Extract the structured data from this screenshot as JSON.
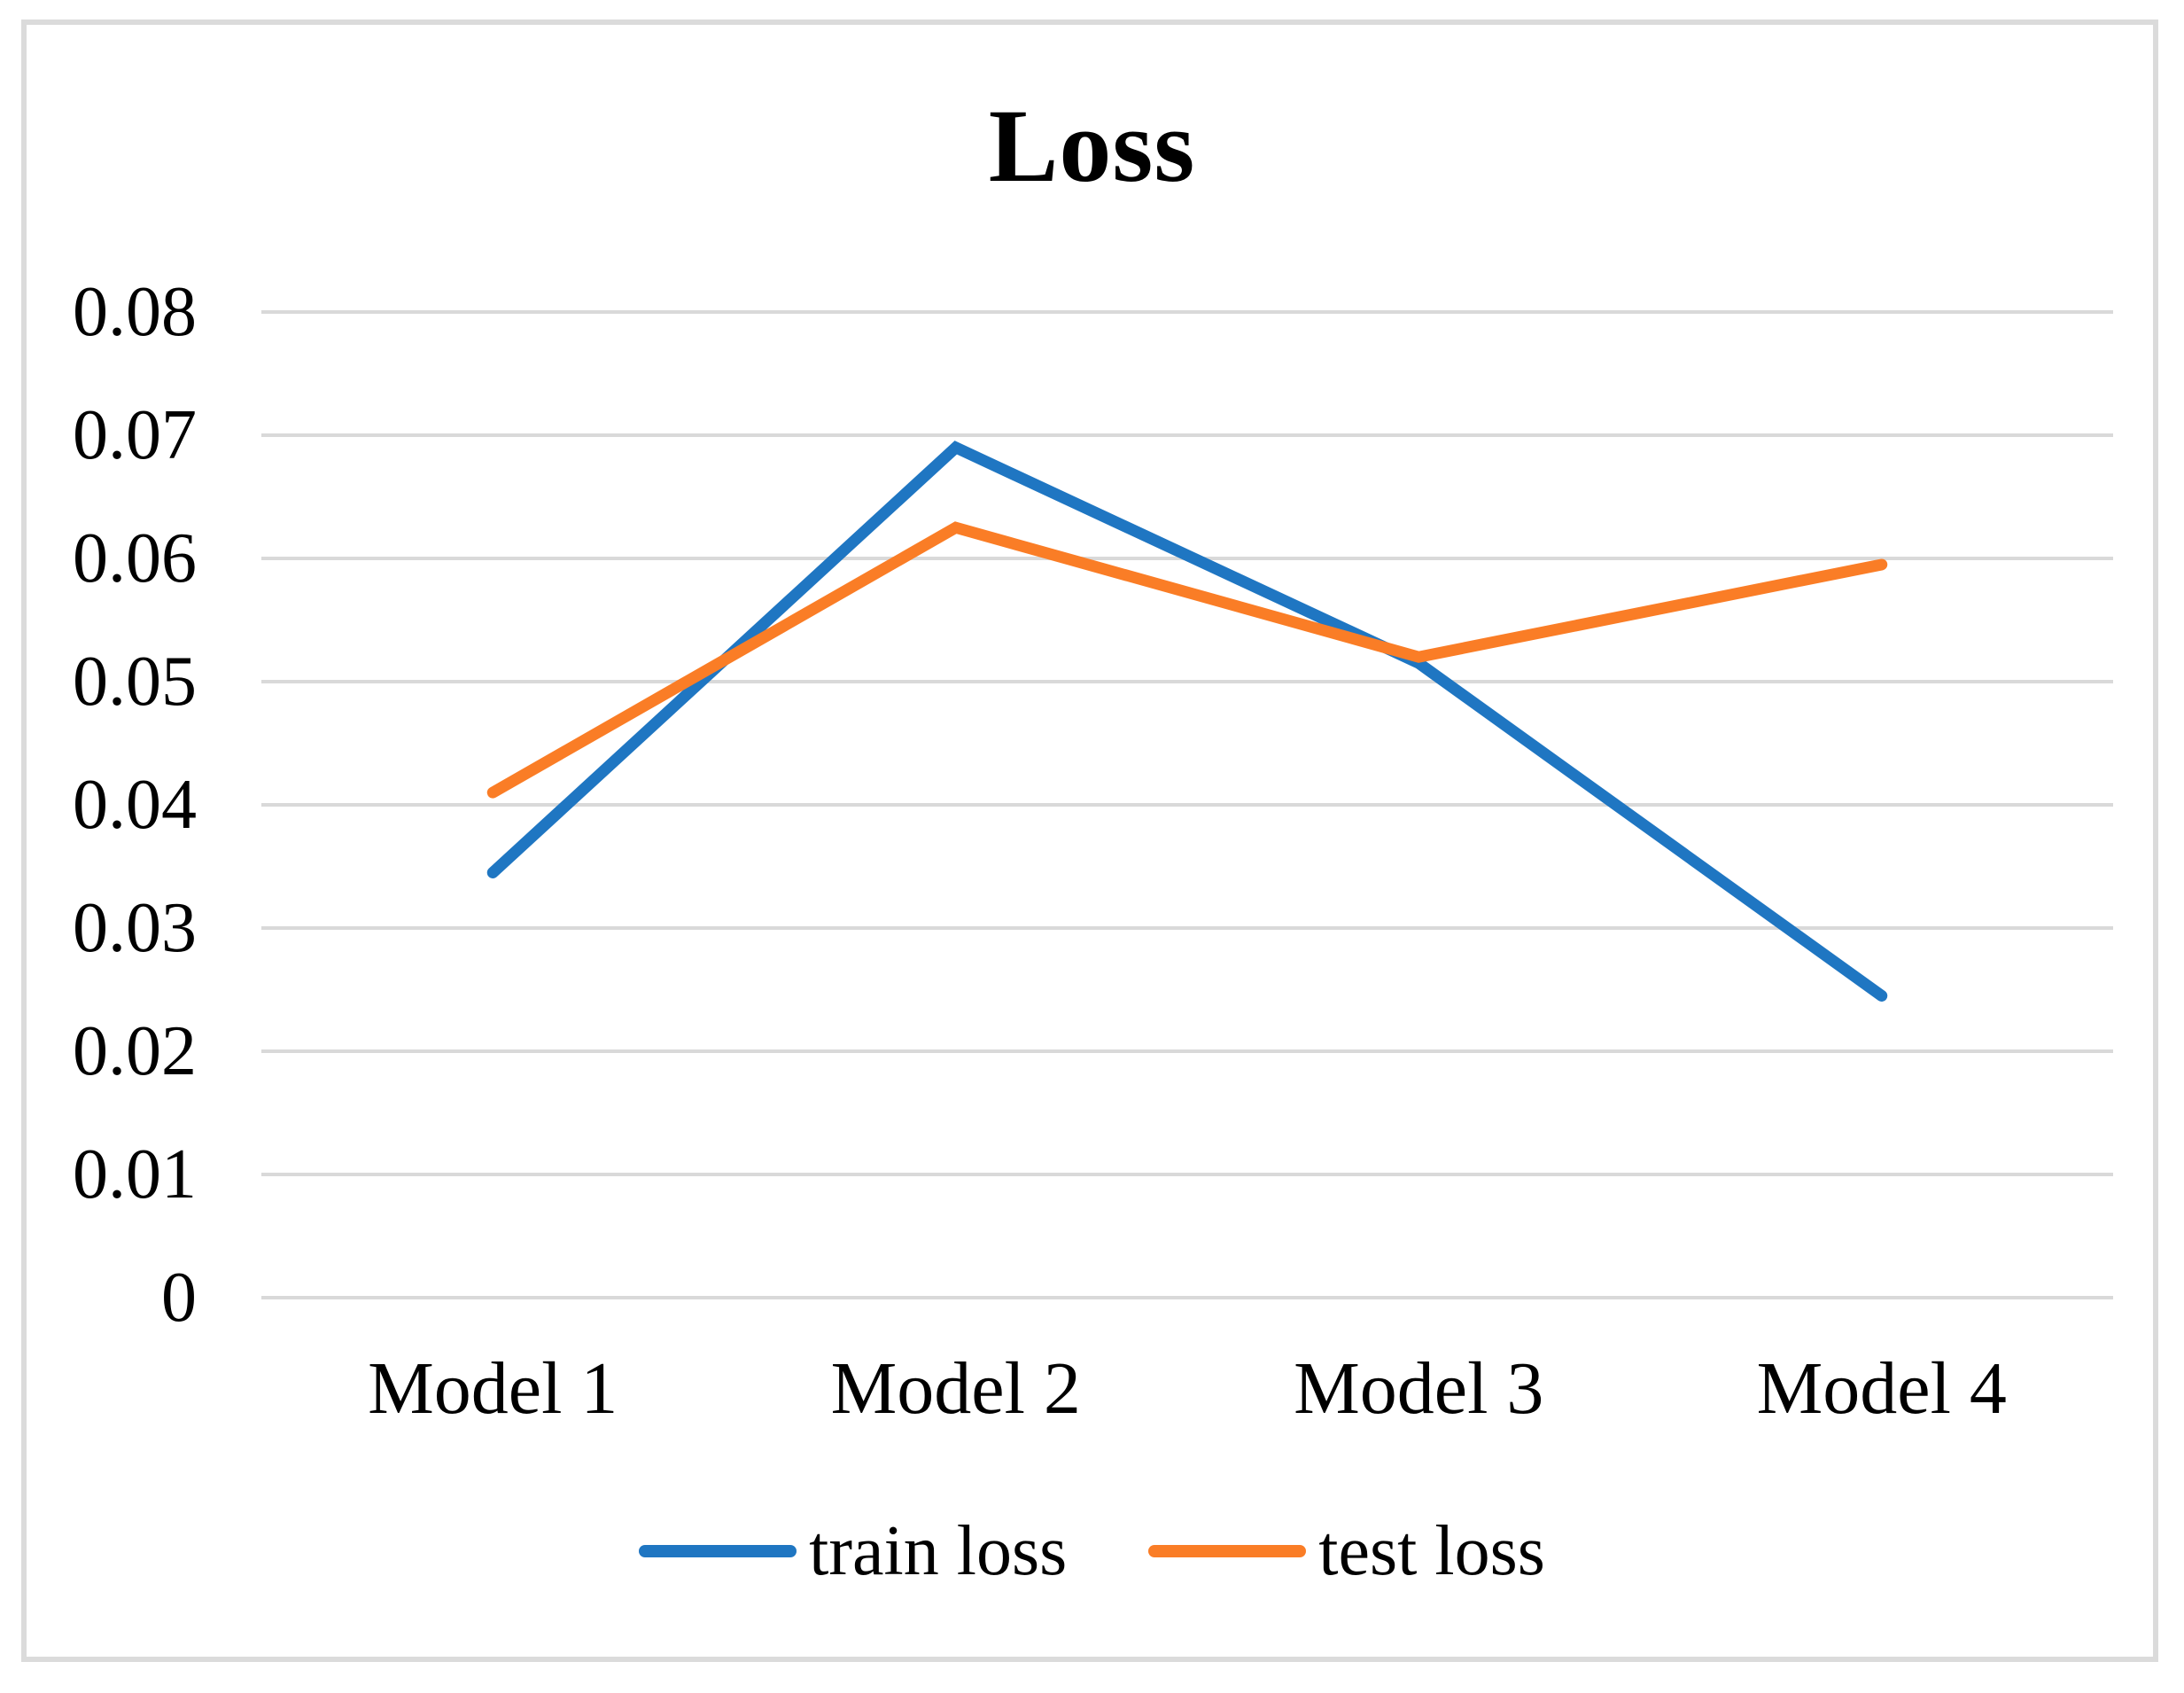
{
  "chart_data": {
    "type": "line",
    "title": "Loss",
    "categories": [
      "Model 1",
      "Model 2",
      "Model 3",
      "Model 4"
    ],
    "series": [
      {
        "name": "train loss",
        "color": "#1F76C2",
        "values": [
          0.0345,
          0.069,
          0.0515,
          0.0245
        ]
      },
      {
        "name": "test loss",
        "color": "#FA7D26",
        "values": [
          0.041,
          0.0625,
          0.052,
          0.0595
        ]
      }
    ],
    "xlabel": "",
    "ylabel": "",
    "ylim": [
      0,
      0.08
    ],
    "yticks": [
      0,
      0.01,
      0.02,
      0.03,
      0.04,
      0.05,
      0.06,
      0.07,
      0.08
    ],
    "ytick_labels": [
      "0",
      "0.01",
      "0.02",
      "0.03",
      "0.04",
      "0.05",
      "0.06",
      "0.07",
      "0.08"
    ],
    "grid": true,
    "grid_color": "#D9D9D9",
    "frame_color": "#DBDBDB",
    "legend_position": "bottom"
  }
}
